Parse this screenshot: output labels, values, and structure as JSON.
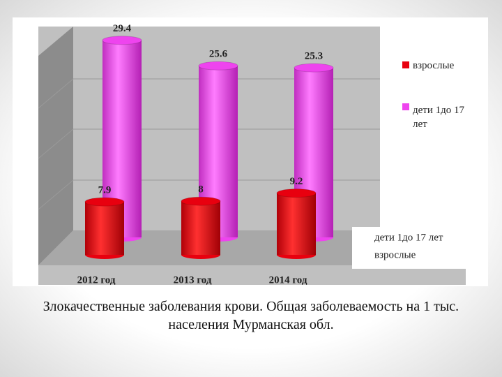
{
  "chart_data": {
    "type": "bar3d-cylinder",
    "caption": "Злокачественные заболевания крови. Общая заболеваемость на 1 тыс. населения Мурманская обл.",
    "categories": [
      "2012 год",
      "2013 год",
      "2014 год"
    ],
    "series": [
      {
        "name": "взрослые",
        "color": "#e8000f",
        "values": [
          7.9,
          8,
          9.2
        ]
      },
      {
        "name": "дети 1до 17 лет",
        "color": "#ee44ee",
        "values": [
          29.4,
          25.6,
          25.3
        ]
      }
    ],
    "ylim": [
      0,
      35
    ],
    "legend": "right"
  }
}
